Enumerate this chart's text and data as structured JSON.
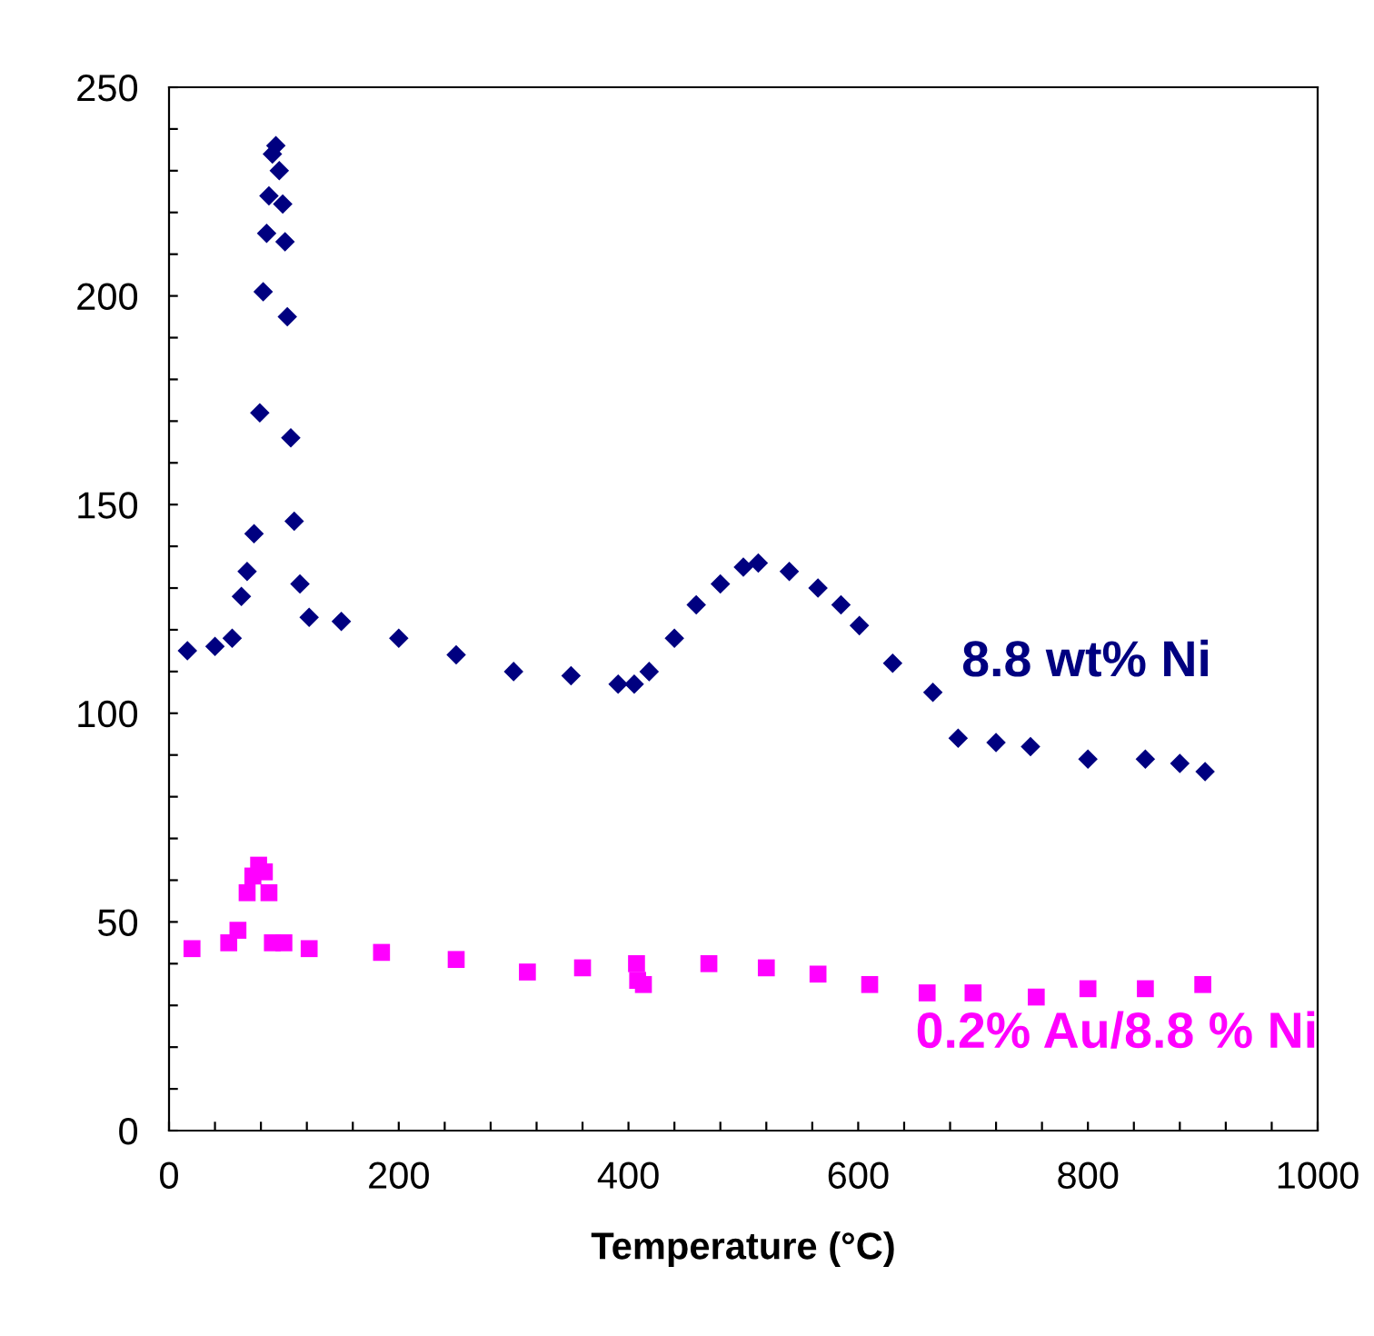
{
  "chart_data": {
    "type": "scatter",
    "xlabel": "Temperature (°C)",
    "xlim": [
      0,
      1000
    ],
    "ylim": [
      0,
      250
    ],
    "xticks": [
      0,
      {
        "value": 40,
        "label": null
      },
      {
        "value": 80,
        "label": null
      },
      {
        "value": 120,
        "label": null
      },
      {
        "value": 160,
        "label": null
      },
      200,
      {
        "value": 240,
        "label": null
      },
      {
        "value": 280,
        "label": null
      },
      {
        "value": 320,
        "label": null
      },
      {
        "value": 360,
        "label": null
      },
      400,
      {
        "value": 440,
        "label": null
      },
      {
        "value": 480,
        "label": null
      },
      {
        "value": 520,
        "label": null
      },
      {
        "value": 560,
        "label": null
      },
      600,
      {
        "value": 640,
        "label": null
      },
      {
        "value": 680,
        "label": null
      },
      {
        "value": 720,
        "label": null
      },
      {
        "value": 760,
        "label": null
      },
      800,
      {
        "value": 840,
        "label": null
      },
      {
        "value": 880,
        "label": null
      },
      {
        "value": 920,
        "label": null
      },
      {
        "value": 960,
        "label": null
      },
      1000
    ],
    "yticks": [
      0,
      {
        "value": 10,
        "label": null
      },
      {
        "value": 20,
        "label": null
      },
      {
        "value": 30,
        "label": null
      },
      {
        "value": 40,
        "label": null
      },
      50,
      {
        "value": 60,
        "label": null
      },
      {
        "value": 70,
        "label": null
      },
      {
        "value": 80,
        "label": null
      },
      {
        "value": 90,
        "label": null
      },
      100,
      {
        "value": 110,
        "label": null
      },
      {
        "value": 120,
        "label": null
      },
      {
        "value": 130,
        "label": null
      },
      {
        "value": 140,
        "label": null
      },
      150,
      {
        "value": 160,
        "label": null
      },
      {
        "value": 170,
        "label": null
      },
      {
        "value": 180,
        "label": null
      },
      {
        "value": 190,
        "label": null
      },
      200,
      {
        "value": 210,
        "label": null
      },
      {
        "value": 220,
        "label": null
      },
      {
        "value": 230,
        "label": null
      },
      {
        "value": 240,
        "label": null
      },
      250
    ],
    "grid": false,
    "legend": false,
    "series": [
      {
        "name": "8.8 wt% Ni",
        "color": "#000080",
        "marker": "diamond",
        "x": [
          16,
          40,
          55,
          63,
          68,
          74,
          79,
          82,
          85,
          87,
          90,
          93,
          96,
          99,
          101,
          103,
          106,
          109,
          114,
          122,
          150,
          200,
          250,
          300,
          350,
          391,
          405,
          418,
          440,
          459,
          480,
          500,
          513,
          540,
          565,
          585,
          601,
          630,
          665,
          687,
          720,
          750,
          800,
          850,
          880,
          902
        ],
        "values": [
          115,
          116,
          118,
          128,
          134,
          143,
          172,
          201,
          215,
          224,
          234,
          236,
          230,
          222,
          213,
          195,
          166,
          146,
          131,
          123,
          122,
          118,
          114,
          110,
          109,
          107,
          107,
          110,
          118,
          126,
          131,
          135,
          136,
          134,
          130,
          126,
          121,
          112,
          105,
          94,
          93,
          92,
          89,
          89,
          88,
          86
        ]
      },
      {
        "name": "0.2% Au/8.8 % Ni",
        "color": "#ff00ff",
        "marker": "square",
        "x": [
          20,
          52,
          60,
          68,
          73,
          78,
          83,
          87,
          90,
          100,
          122,
          185,
          250,
          312,
          360,
          407,
          408,
          413,
          470,
          520,
          565,
          610,
          660,
          700,
          755,
          800,
          850,
          900
        ],
        "values": [
          43.6,
          45,
          48,
          57,
          61,
          63.6,
          62,
          57,
          45,
          45,
          43.6,
          42.7,
          41,
          38,
          39,
          40,
          36,
          35,
          40,
          39,
          37.5,
          35,
          33,
          33,
          32,
          34,
          34,
          35
        ]
      }
    ]
  }
}
